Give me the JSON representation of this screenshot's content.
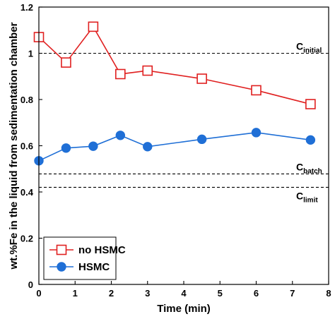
{
  "chart_data": {
    "type": "line",
    "xlabel": "Time (min)",
    "ylabel": "wt.%Fe in the liquid from sedimentation chamber",
    "xlim": [
      0,
      8
    ],
    "ylim": [
      0,
      1.2
    ],
    "x_ticks": [
      0,
      1,
      2,
      3,
      4,
      5,
      6,
      7,
      8
    ],
    "y_ticks": [
      0,
      0.2,
      0.4,
      0.6,
      0.8,
      1,
      1.2
    ],
    "x_tick_labels": [
      "0",
      "1",
      "2",
      "3",
      "4",
      "5",
      "6",
      "7",
      "8"
    ],
    "y_tick_labels": [
      "0",
      "0.2",
      "0.4",
      "0.6",
      "0.8",
      "1",
      "1.2"
    ],
    "grid": false,
    "legend_position": "bottom-left",
    "series": [
      {
        "name": "no HSMC",
        "color": "#e02020",
        "marker": "open-square",
        "x": [
          0,
          0.75,
          1.5,
          2.25,
          3,
          4.5,
          6,
          7.5
        ],
        "y": [
          1.07,
          0.96,
          1.115,
          0.91,
          0.925,
          0.89,
          0.84,
          0.78
        ]
      },
      {
        "name": "HSMC",
        "color": "#1f6fd6",
        "marker": "filled-circle",
        "x": [
          0,
          0.75,
          1.5,
          2.25,
          3,
          4.5,
          6,
          7.5
        ],
        "y": [
          0.535,
          0.59,
          0.598,
          0.645,
          0.596,
          0.628,
          0.657,
          0.625
        ]
      }
    ],
    "reference_lines": [
      {
        "y": 1.0,
        "label_main": "C",
        "label_sub": "initial"
      },
      {
        "y": 0.478,
        "label_main": "C",
        "label_sub": "batch"
      },
      {
        "y": 0.42,
        "label_main": "C",
        "label_sub": "limit"
      }
    ]
  }
}
